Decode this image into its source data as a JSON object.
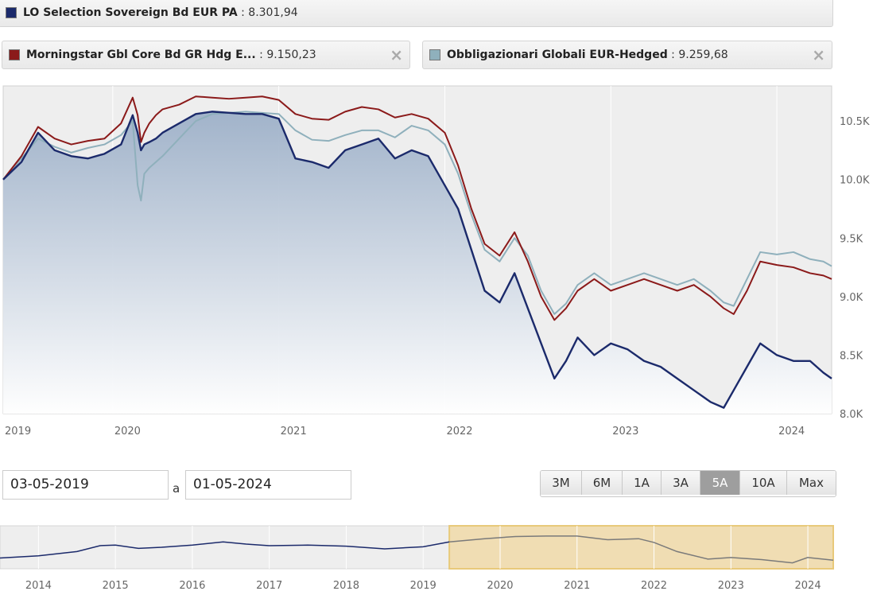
{
  "legend": [
    {
      "name": "LO Selection Sovereign Bd EUR PA",
      "value": "8.301,94",
      "color": "#1b2a6b",
      "closable": false
    },
    {
      "name": "Morningstar Gbl Core Bd GR Hdg E...",
      "value": "9.150,23",
      "color": "#8b1a1a",
      "closable": true
    },
    {
      "name": "Obbligazionari Globali EUR-Hedged",
      "value": "9.259,68",
      "color": "#8fb0bc",
      "closable": true
    }
  ],
  "close_icon": "×",
  "value_separator": " : ",
  "date_range": {
    "from": "03-05-2019",
    "separator": "a",
    "to": "01-05-2024"
  },
  "range_buttons": [
    "3M",
    "6M",
    "1A",
    "3A",
    "5A",
    "10A",
    "Max"
  ],
  "active_range": "5A",
  "chart_data": [
    {
      "type": "line",
      "x_axis_labels": [
        "2019",
        "2020",
        "2021",
        "2022",
        "2023",
        "2024"
      ],
      "x_range": [
        2019.34,
        2024.33
      ],
      "y_ticks": [
        "8.0K",
        "8.5K",
        "9.0K",
        "9.5K",
        "10.0K",
        "10.5K"
      ],
      "y_tick_values": [
        8000,
        8500,
        9000,
        9500,
        10000,
        10500
      ],
      "ylim": [
        8000,
        10800
      ],
      "y_axis_side": "right",
      "grid": true,
      "series": [
        {
          "name": "Obbligazionari Globali EUR-Hedged",
          "color": "#8fb0bc",
          "x": [
            2019.34,
            2019.45,
            2019.55,
            2019.65,
            2019.75,
            2019.85,
            2019.95,
            2020.05,
            2020.12,
            2020.15,
            2020.17,
            2020.19,
            2020.22,
            2020.26,
            2020.3,
            2020.4,
            2020.5,
            2020.6,
            2020.7,
            2020.8,
            2020.9,
            2021.0,
            2021.1,
            2021.2,
            2021.3,
            2021.4,
            2021.5,
            2021.6,
            2021.7,
            2021.8,
            2021.9,
            2022.0,
            2022.08,
            2022.16,
            2022.24,
            2022.33,
            2022.42,
            2022.5,
            2022.58,
            2022.66,
            2022.73,
            2022.8,
            2022.9,
            2023.0,
            2023.1,
            2023.2,
            2023.3,
            2023.4,
            2023.5,
            2023.6,
            2023.68,
            2023.74,
            2023.82,
            2023.9,
            2024.0,
            2024.1,
            2024.2,
            2024.28,
            2024.33
          ],
          "y": [
            10000,
            10180,
            10350,
            10280,
            10230,
            10270,
            10300,
            10380,
            10500,
            9950,
            9820,
            10050,
            10100,
            10150,
            10200,
            10350,
            10500,
            10560,
            10570,
            10580,
            10570,
            10560,
            10420,
            10340,
            10330,
            10380,
            10420,
            10420,
            10360,
            10460,
            10420,
            10300,
            10050,
            9700,
            9400,
            9300,
            9500,
            9350,
            9050,
            8850,
            8940,
            9100,
            9200,
            9100,
            9150,
            9200,
            9150,
            9100,
            9150,
            9050,
            8950,
            8920,
            9150,
            9380,
            9360,
            9380,
            9320,
            9300,
            9260
          ]
        },
        {
          "name": "Morningstar Gbl Core Bd GR Hdg E...",
          "color": "#8b1a1a",
          "x": [
            2019.34,
            2019.45,
            2019.55,
            2019.65,
            2019.75,
            2019.85,
            2019.95,
            2020.05,
            2020.12,
            2020.15,
            2020.17,
            2020.19,
            2020.22,
            2020.26,
            2020.3,
            2020.4,
            2020.5,
            2020.6,
            2020.7,
            2020.8,
            2020.9,
            2021.0,
            2021.1,
            2021.2,
            2021.3,
            2021.4,
            2021.5,
            2021.6,
            2021.7,
            2021.8,
            2021.9,
            2022.0,
            2022.08,
            2022.16,
            2022.24,
            2022.33,
            2022.42,
            2022.5,
            2022.58,
            2022.66,
            2022.73,
            2022.8,
            2022.9,
            2023.0,
            2023.1,
            2023.2,
            2023.3,
            2023.4,
            2023.5,
            2023.6,
            2023.68,
            2023.74,
            2023.82,
            2023.9,
            2024.0,
            2024.1,
            2024.2,
            2024.28,
            2024.33
          ],
          "y": [
            10000,
            10200,
            10450,
            10350,
            10300,
            10330,
            10350,
            10480,
            10700,
            10550,
            10320,
            10400,
            10480,
            10550,
            10600,
            10640,
            10710,
            10700,
            10690,
            10700,
            10710,
            10680,
            10560,
            10520,
            10510,
            10580,
            10620,
            10600,
            10530,
            10560,
            10520,
            10400,
            10120,
            9750,
            9450,
            9350,
            9550,
            9300,
            9000,
            8800,
            8900,
            9050,
            9150,
            9050,
            9100,
            9150,
            9100,
            9050,
            9100,
            9000,
            8900,
            8850,
            9050,
            9300,
            9270,
            9250,
            9200,
            9180,
            9150
          ]
        },
        {
          "name": "LO Selection Sovereign Bd EUR PA",
          "color": "#1b2a6b",
          "x": [
            2019.34,
            2019.45,
            2019.55,
            2019.65,
            2019.75,
            2019.85,
            2019.95,
            2020.05,
            2020.12,
            2020.15,
            2020.17,
            2020.19,
            2020.22,
            2020.26,
            2020.3,
            2020.4,
            2020.5,
            2020.6,
            2020.7,
            2020.8,
            2020.9,
            2021.0,
            2021.1,
            2021.2,
            2021.3,
            2021.4,
            2021.5,
            2021.6,
            2021.7,
            2021.8,
            2021.9,
            2022.0,
            2022.08,
            2022.16,
            2022.24,
            2022.33,
            2022.42,
            2022.5,
            2022.58,
            2022.66,
            2022.73,
            2022.8,
            2022.9,
            2023.0,
            2023.1,
            2023.2,
            2023.3,
            2023.4,
            2023.5,
            2023.6,
            2023.68,
            2023.74,
            2023.82,
            2023.9,
            2024.0,
            2024.1,
            2024.2,
            2024.28,
            2024.33
          ],
          "y": [
            10000,
            10150,
            10400,
            10250,
            10200,
            10180,
            10220,
            10300,
            10550,
            10400,
            10250,
            10300,
            10320,
            10350,
            10400,
            10480,
            10560,
            10580,
            10570,
            10560,
            10560,
            10520,
            10180,
            10150,
            10100,
            10250,
            10300,
            10350,
            10180,
            10250,
            10200,
            9950,
            9750,
            9400,
            9050,
            8950,
            9200,
            8900,
            8600,
            8300,
            8450,
            8650,
            8500,
            8600,
            8550,
            8450,
            8400,
            8300,
            8200,
            8100,
            8050,
            8200,
            8400,
            8600,
            8500,
            8450,
            8450,
            8350,
            8300
          ]
        }
      ]
    },
    {
      "type": "line",
      "x_axis_labels": [
        "2014",
        "2015",
        "2016",
        "2017",
        "2018",
        "2019",
        "2020",
        "2021",
        "2022",
        "2023",
        "2024"
      ],
      "x_range": [
        2013.5,
        2024.33
      ],
      "selected_range": [
        2019.34,
        2024.33
      ],
      "series": [
        {
          "name": "LO Selection Sovereign Bd EUR PA",
          "color": "#1b2a6b",
          "x": [
            2013.5,
            2014.0,
            2014.5,
            2014.8,
            2015.0,
            2015.3,
            2015.6,
            2016.0,
            2016.4,
            2016.7,
            2017.0,
            2017.5,
            2018.0,
            2018.5,
            2019.0,
            2019.34
          ],
          "y": [
            8500,
            8700,
            9100,
            9650,
            9700,
            9400,
            9500,
            9700,
            10000,
            9800,
            9650,
            9700,
            9600,
            9350,
            9550,
            10000
          ]
        },
        {
          "name": "LO Selection Sovereign Bd EUR PA",
          "color": "#7a7a7a",
          "x": [
            2019.34,
            2019.8,
            2020.2,
            2020.6,
            2021.0,
            2021.4,
            2021.8,
            2022.0,
            2022.3,
            2022.7,
            2023.0,
            2023.4,
            2023.8,
            2024.0,
            2024.33
          ],
          "y": [
            10000,
            10300,
            10500,
            10550,
            10550,
            10200,
            10300,
            9950,
            9100,
            8400,
            8550,
            8350,
            8050,
            8550,
            8300
          ]
        }
      ]
    }
  ]
}
